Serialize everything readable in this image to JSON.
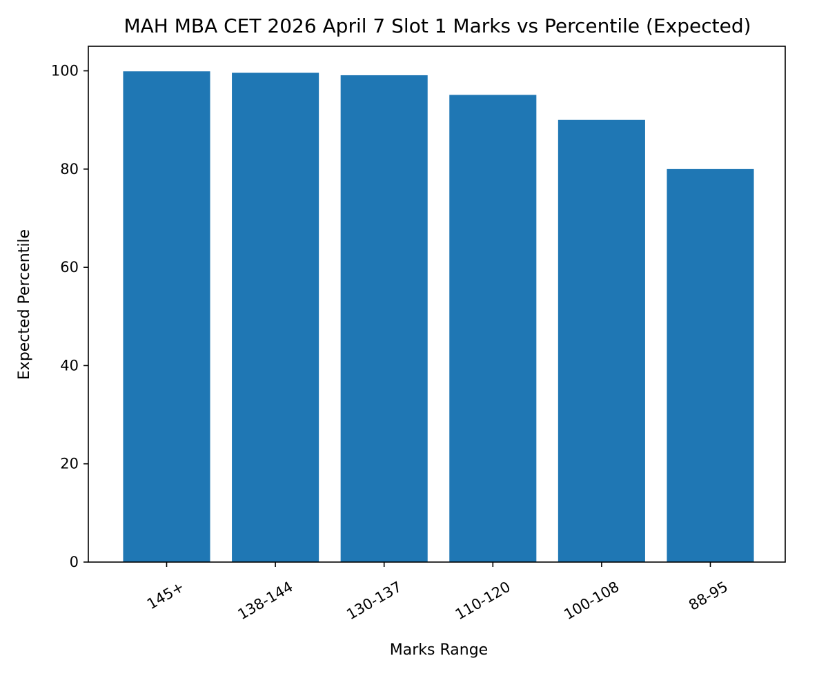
{
  "chart_data": {
    "type": "bar",
    "title": "MAH MBA CET 2026 April 7 Slot 1 Marks vs Percentile (Expected)",
    "xlabel": "Marks Range",
    "ylabel": "Expected Percentile",
    "categories": [
      "145+",
      "138-144",
      "130-137",
      "110-120",
      "100-108",
      "88-95"
    ],
    "values": [
      99.9,
      99.6,
      99.1,
      95.1,
      90.0,
      80.0
    ],
    "ylim": [
      0,
      105
    ],
    "yticks": [
      0,
      20,
      40,
      60,
      80,
      100
    ],
    "xtick_rotation_deg": 30,
    "grid": false,
    "legend": "none",
    "bar_color": "#1f77b4"
  }
}
